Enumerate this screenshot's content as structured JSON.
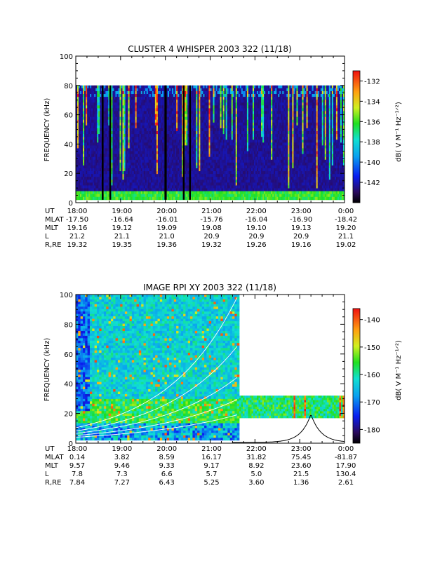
{
  "panels": [
    {
      "title": "CLUSTER 4 WHISPER 2003 322 (11/18)",
      "ylabel": "FREQUENCY (kHz)",
      "ytick_labels": [
        "0",
        "20",
        "40",
        "60",
        "80",
        "100"
      ],
      "xtick_labels": [
        "18:00",
        "19:00",
        "20:00",
        "21:00",
        "22:00",
        "23:00",
        "0:00"
      ],
      "cbar_label": "dB( V M⁻¹ Hz⁻¹ᐟ²)",
      "cbar_ticks": [
        "-132",
        "-134",
        "-136",
        "-138",
        "-140",
        "-142"
      ],
      "ephem": [
        {
          "label": "UT",
          "values": [
            "18:00",
            "19:00",
            "20:00",
            "21:00",
            "22:00",
            "23:00",
            "0:00"
          ]
        },
        {
          "label": "MLAT",
          "values": [
            "-17.50",
            "-16.64",
            "-16.01",
            "-15.76",
            "-16.04",
            "-16.90",
            "-18.42"
          ]
        },
        {
          "label": "MLT",
          "values": [
            "19.16",
            "19.12",
            "19.09",
            "19.08",
            "19.10",
            "19.13",
            "19.20"
          ]
        },
        {
          "label": "L",
          "values": [
            "21.2",
            "21.1",
            "21.0",
            "20.9",
            "20.9",
            "20.9",
            "21.1"
          ]
        },
        {
          "label": "R,RE",
          "values": [
            "19.32",
            "19.35",
            "19.36",
            "19.32",
            "19.26",
            "19.16",
            "19.02"
          ]
        }
      ]
    },
    {
      "title": "IMAGE RPI XY 2003 322 (11/18)",
      "ylabel": "FREQUENCY (kHz)",
      "ytick_labels": [
        "0",
        "20",
        "40",
        "60",
        "80",
        "100"
      ],
      "xtick_labels": [
        "18:00",
        "19:00",
        "20:00",
        "21:00",
        "22:00",
        "23:00",
        "0:00"
      ],
      "cbar_label": "dB( V M⁻¹ Hz⁻¹ᐟ²)",
      "cbar_ticks": [
        "-140",
        "-150",
        "-160",
        "-170",
        "-180"
      ],
      "ephem": [
        {
          "label": "UT",
          "values": [
            "18:00",
            "19:00",
            "20:00",
            "21:00",
            "22:00",
            "23:00",
            "0:00"
          ]
        },
        {
          "label": "MLAT",
          "values": [
            "0.14",
            "3.82",
            "8.59",
            "16.17",
            "31.82",
            "75.45",
            "-81.87"
          ]
        },
        {
          "label": "MLT",
          "values": [
            "9.57",
            "9.46",
            "9.33",
            "9.17",
            "8.92",
            "23.60",
            "17.90"
          ]
        },
        {
          "label": "L",
          "values": [
            "7.8",
            "7.3",
            "6.6",
            "5.7",
            "5.0",
            "21.5",
            "130.4"
          ]
        },
        {
          "label": "R,RE",
          "values": [
            "7.84",
            "7.27",
            "6.43",
            "5.25",
            "3.60",
            "1.36",
            "2.61"
          ]
        }
      ]
    }
  ],
  "chart_data": [
    {
      "type": "heatmap",
      "title": "CLUSTER 4 WHISPER 2003 322 (11/18)",
      "xlabel": "UT",
      "ylabel": "FREQUENCY (kHz)",
      "x_range_hours": [
        18,
        24
      ],
      "ylim": [
        0,
        100
      ],
      "data_freq_range_khz": [
        2,
        80
      ],
      "colorbar": {
        "label": "dB( V M-1 Hz-1/2)",
        "range": [
          -144,
          -131
        ],
        "ticks": [
          -132,
          -134,
          -136,
          -138,
          -140,
          -142
        ]
      },
      "data_gaps_hours": [
        [
          18.58,
          18.62
        ],
        [
          18.75,
          18.79
        ],
        [
          19.98,
          20.03
        ],
        [
          20.39,
          20.43
        ],
        [
          20.53,
          20.57
        ]
      ]
    },
    {
      "type": "heatmap",
      "title": "IMAGE RPI XY 2003 322 (11/18)",
      "xlabel": "UT",
      "ylabel": "FREQUENCY (kHz)",
      "x_range_hours": [
        18,
        24
      ],
      "ylim": [
        0,
        100
      ],
      "colorbar": {
        "label": "dB( V M-1 Hz-1/2)",
        "range": [
          -185,
          -136
        ],
        "ticks": [
          -140,
          -150,
          -160,
          -170,
          -180
        ]
      },
      "coverage": [
        {
          "x_hours": [
            18.0,
            21.65
          ],
          "freq_khz": [
            2,
            100
          ]
        },
        {
          "x_hours": [
            21.65,
            24.0
          ],
          "freq_khz": [
            17,
            32
          ]
        }
      ],
      "overlay_curve_peak": {
        "x_hours": 23.25,
        "freq_khz": 19
      }
    }
  ]
}
